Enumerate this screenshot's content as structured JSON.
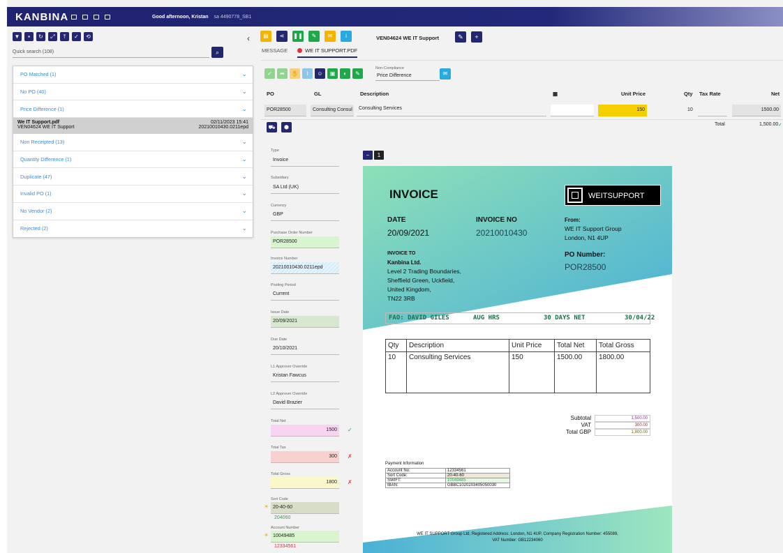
{
  "brand": "KANBINA",
  "greeting": "Good afternoon, Kristan",
  "session": "sa 4490778_SB1",
  "search": {
    "label": "Quick search (108)"
  },
  "groups": [
    {
      "label": "PO Matched (1)"
    },
    {
      "label": "No PO (40)"
    },
    {
      "label": "Price Difference (1)",
      "expanded": true
    }
  ],
  "doc_item": {
    "name": "We IT Support.pdf",
    "date": "02/11/2023 15:41",
    "vendor": "VEN04624 WE IT Support",
    "ref": "20210010430.0211epd"
  },
  "groups2": [
    {
      "label": "Non Receipted (13)"
    },
    {
      "label": "Quantity Difference (1)"
    },
    {
      "label": "Duplicate (47)"
    },
    {
      "label": "Invalid PO (1)"
    },
    {
      "label": "No Vendor (2)"
    },
    {
      "label": "Rejected (2)"
    }
  ],
  "vendor_title": "VEN04624 WE IT Support",
  "tabs": {
    "message": "MESSAGE",
    "pdf": "WE IT SUPPORT.PDF"
  },
  "noncompliance": {
    "label": "Non-Compliance",
    "value": "Price Difference"
  },
  "lines": {
    "headers": {
      "po": "PO",
      "gl": "GL",
      "desc": "Description",
      "unit_price": "Unit Price",
      "qty": "Qty",
      "tax_rate": "Tax Rate",
      "net": "Net"
    },
    "row": {
      "po": "POR28500",
      "gl": "Consulting Consul",
      "desc": "Consulting Services",
      "unit_price": "150",
      "qty": "10",
      "net": "1500.00"
    },
    "total_label": "Total",
    "total_value": "1,500.00"
  },
  "form": [
    {
      "label": "Type",
      "value": "Invoice"
    },
    {
      "label": "Subsidiary",
      "value": "SA Ltd (UK)"
    },
    {
      "label": "Currency",
      "value": "GBP"
    },
    {
      "label": "Purchase Order Number",
      "value": "POR28500"
    },
    {
      "label": "Invoice Number",
      "value": "20210010430.0211epd"
    },
    {
      "label": "Posting Period",
      "value": "Current"
    },
    {
      "label": "Issue Date",
      "value": "20/09/2021"
    },
    {
      "label": "Due Date",
      "value": "20/10/2021"
    },
    {
      "label": "L1 Approver Override",
      "value": "Kristan Fawcus"
    },
    {
      "label": "L2 Approver Override",
      "value": "David Brazier"
    },
    {
      "label": "Total Net",
      "value": "1500"
    },
    {
      "label": "Total Tax",
      "value": "300"
    },
    {
      "label": "Total Gross",
      "value": "1800"
    },
    {
      "label": "Sort Code",
      "value": "20-40-60",
      "sub": "204060"
    },
    {
      "label": "Account Number",
      "value": "10049485",
      "sub": "12334561"
    }
  ],
  "page": "1",
  "pdf": {
    "title": "INVOICE",
    "logo": "WEITSUPPORT",
    "date_label": "DATE",
    "date": "20/09/2021",
    "invno_label": "INVOICE NO",
    "invno": "20210010430",
    "from_label": "From:",
    "from1": "WE IT Support Group",
    "from2": "London, N1 4UP",
    "invto_label": "INVOICE TO",
    "to": [
      "Kanbina Ltd.",
      "Level 2 Trading Boundaries,",
      "Sheffield Green, Uckfield,",
      "United Kingdom,",
      "TN22 3RB"
    ],
    "po_label": "PO Number:",
    "po": "POR28500",
    "fao": "FAO: DAVID GILES",
    "aug": "AUG HRS",
    "terms": "30 DAYS NET",
    "due": "30/04/22",
    "th": [
      "Qty",
      "Description",
      "Unit Price",
      "Total Net",
      "Total Gross"
    ],
    "tr": [
      "10",
      "Consulting Services",
      "150",
      "1500.00",
      "1800.00"
    ],
    "subtotal_label": "Subtotal",
    "subtotal": "1,500.00",
    "vat_label": "VAT",
    "vat": "300.00",
    "total_label": "Total GBP",
    "total": "1,800.00",
    "payinfo": "Payment Information",
    "pay": [
      [
        "Account No:",
        "12334561"
      ],
      [
        "Sort Code:",
        "20-40-60"
      ],
      [
        "SWIFT:",
        "10049485"
      ],
      [
        "IBAN:",
        "GBBC1020203405050030"
      ]
    ],
    "footer1": "WE IT SUPPORT Group Ltd, Registered Address: London, N1 4UP, Company Registration Number: 455089,",
    "footer2": "VAT Number: GB12234060"
  },
  "colors": {
    "navy": "#23276f",
    "gold": "#f5d000",
    "green": "#1fa84a",
    "link": "#3d8bd9"
  }
}
